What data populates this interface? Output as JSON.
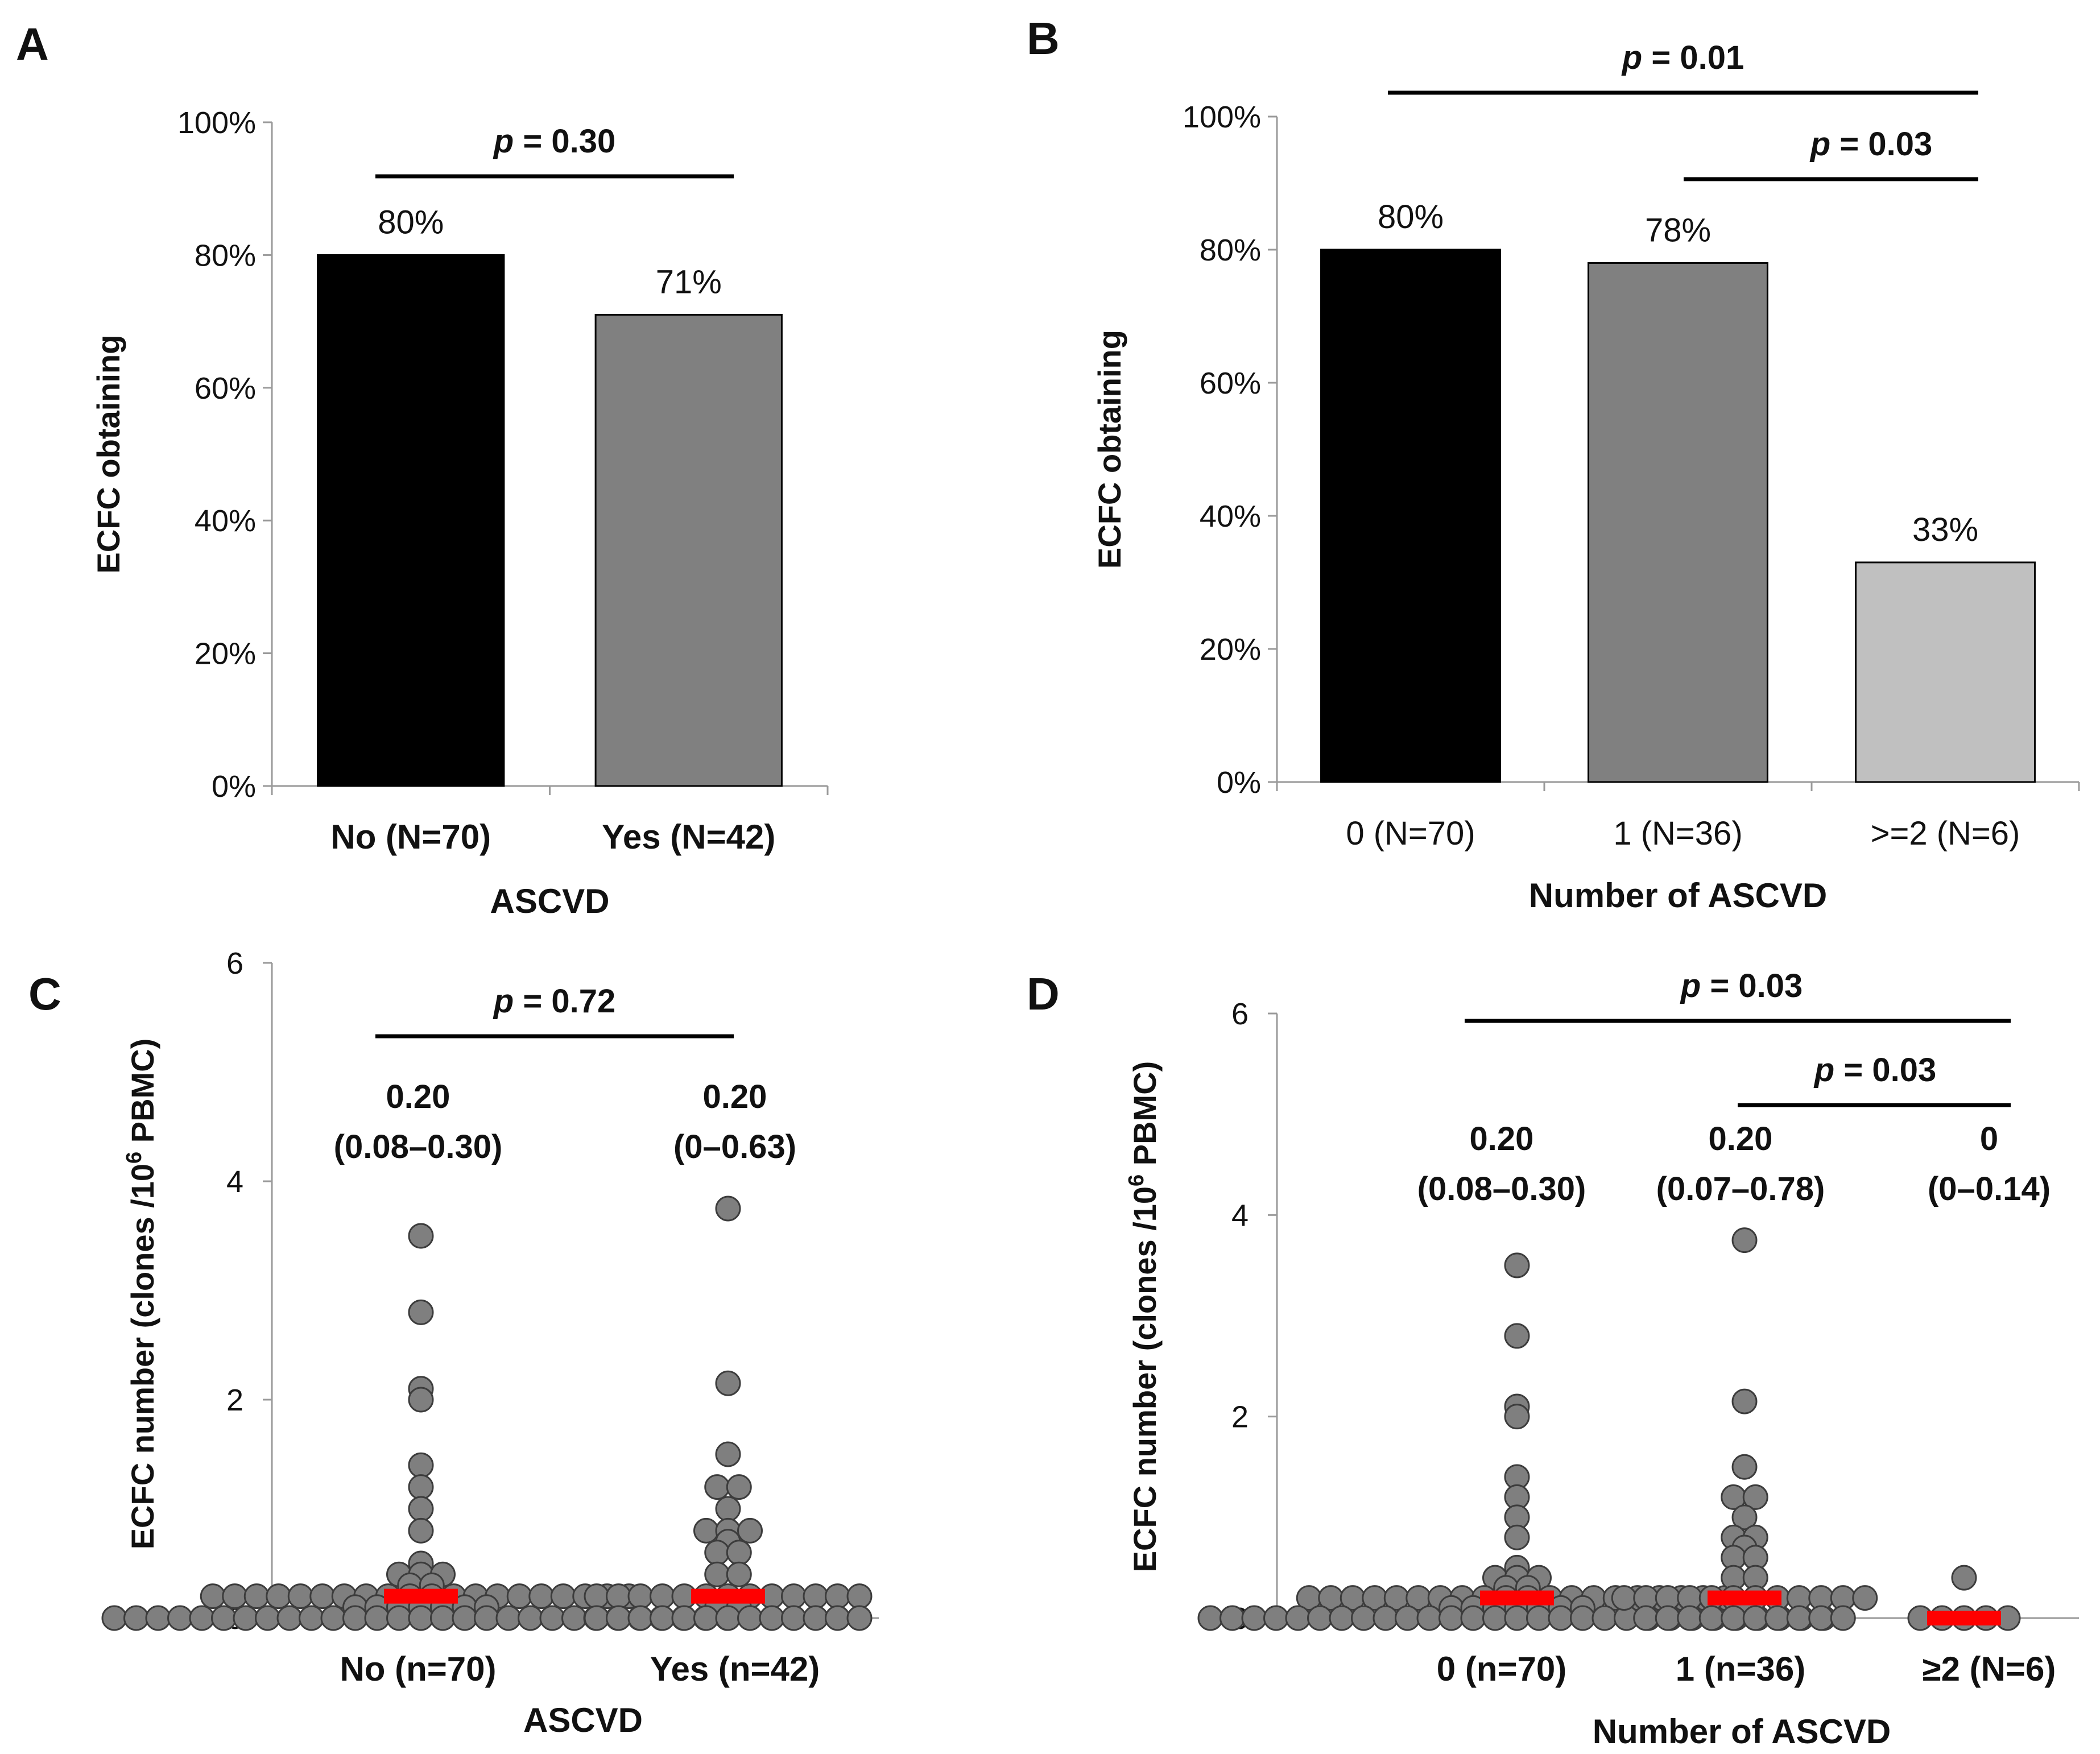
{
  "chart_data": [
    {
      "panel": "A",
      "type": "bar",
      "categories": [
        "No (N=70)",
        "Yes (N=42)"
      ],
      "values": [
        80,
        71
      ],
      "value_labels": [
        "80%",
        "71%"
      ],
      "colors": [
        "#000000",
        "#808080"
      ],
      "xlabel": "ASCVD",
      "ylabel": "ECFC obtaining",
      "ylim": [
        0,
        100
      ],
      "yticks": [
        "0%",
        "20%",
        "40%",
        "60%",
        "80%",
        "100%"
      ],
      "comparisons": [
        {
          "from": 0,
          "to": 1,
          "label_prefix": "p",
          "label_rest": " = 0.30"
        }
      ]
    },
    {
      "panel": "B",
      "type": "bar",
      "categories": [
        "0 (N=70)",
        "1 (N=36)",
        ">=2 (N=6)"
      ],
      "values": [
        80,
        78,
        33
      ],
      "value_labels": [
        "80%",
        "78%",
        "33%"
      ],
      "colors": [
        "#000000",
        "#808080",
        "#c0c0c0"
      ],
      "xlabel": "Number of ASCVD",
      "ylabel": "ECFC obtaining",
      "ylim": [
        0,
        100
      ],
      "yticks": [
        "0%",
        "20%",
        "40%",
        "60%",
        "80%",
        "100%"
      ],
      "comparisons": [
        {
          "from": 0,
          "to": 2,
          "label_prefix": "p",
          "label_rest": " = 0.01"
        },
        {
          "from": 1,
          "to": 2,
          "label_prefix": "p",
          "label_rest": " = 0.03"
        }
      ]
    },
    {
      "panel": "C",
      "type": "scatter",
      "categories": [
        "No (n=70)",
        "Yes  (n=42)"
      ],
      "xlabel": "ASCVD",
      "ylabel_parts": [
        "ECFC number (clones /10",
        "6",
        " PBMC)"
      ],
      "ylim": [
        0,
        6
      ],
      "yticks": [
        "0",
        "2",
        "4",
        "6"
      ],
      "medians": [
        0.2,
        0.2
      ],
      "median_labels": [
        "0.20",
        "0.20"
      ],
      "iqr_labels": [
        "(0.08–0.30)",
        "(0–0.63)"
      ],
      "comparisons": [
        {
          "from": 0,
          "to": 1,
          "label_prefix": "p",
          "label_rest": " = 0.72"
        }
      ],
      "groups": [
        [
          3.5,
          2.8,
          2.1,
          2.0,
          1.4,
          1.2,
          1.0,
          0.8,
          0.5,
          0.4,
          0.4,
          0.4,
          0.3,
          0.3,
          0.2,
          0.2,
          0.2,
          0.2,
          0.2,
          0.2,
          0.2,
          0.2,
          0.2,
          0.2,
          0.2,
          0.2,
          0.2,
          0.2,
          0.2,
          0.2,
          0.2,
          0.2,
          0.2,
          0.2,
          0.1,
          0.1,
          0.1,
          0.1,
          0.1,
          0.1,
          0.1,
          0,
          0,
          0,
          0,
          0,
          0,
          0,
          0,
          0,
          0,
          0,
          0,
          0,
          0,
          0,
          0,
          0,
          0,
          0,
          0,
          0,
          0,
          0,
          0,
          0,
          0,
          0,
          0,
          0
        ],
        [
          3.75,
          2.15,
          1.5,
          1.2,
          1.2,
          1.0,
          0.8,
          0.8,
          0.8,
          0.7,
          0.6,
          0.6,
          0.4,
          0.4,
          0.2,
          0.2,
          0.2,
          0.2,
          0.2,
          0.2,
          0.2,
          0.2,
          0.2,
          0.2,
          0.2,
          0.2,
          0.2,
          0.1,
          0.1,
          0,
          0,
          0,
          0,
          0,
          0,
          0,
          0,
          0,
          0,
          0,
          0,
          0
        ]
      ]
    },
    {
      "panel": "D",
      "type": "scatter",
      "categories": [
        "0 (n=70)",
        "1 (n=36)",
        "≥2 (N=6)"
      ],
      "xlabel": "Number of ASCVD",
      "ylabel_parts": [
        "ECFC number (clones /10",
        "6",
        " PBMC)"
      ],
      "ylim": [
        0,
        6
      ],
      "yticks": [
        "0",
        "2",
        "4",
        "6"
      ],
      "medians": [
        0.2,
        0.2,
        0
      ],
      "median_labels": [
        "0.20",
        "0.20",
        "0"
      ],
      "iqr_labels": [
        "(0.08–0.30)",
        "(0.07–0.78)",
        "(0–0.14)"
      ],
      "comparisons": [
        {
          "from": 0,
          "to": 2,
          "label_prefix": "p",
          "label_rest": " = 0.03"
        },
        {
          "from": 1,
          "to": 2,
          "label_prefix": "p",
          "label_rest": " = 0.03"
        }
      ],
      "groups": [
        [
          3.5,
          2.8,
          2.1,
          2.0,
          1.4,
          1.2,
          1.0,
          0.8,
          0.5,
          0.4,
          0.4,
          0.4,
          0.3,
          0.3,
          0.2,
          0.2,
          0.2,
          0.2,
          0.2,
          0.2,
          0.2,
          0.2,
          0.2,
          0.2,
          0.2,
          0.2,
          0.2,
          0.2,
          0.2,
          0.2,
          0.2,
          0.2,
          0.2,
          0.2,
          0.1,
          0.1,
          0.1,
          0.1,
          0.1,
          0.1,
          0.1,
          0,
          0,
          0,
          0,
          0,
          0,
          0,
          0,
          0,
          0,
          0,
          0,
          0,
          0,
          0,
          0,
          0,
          0,
          0,
          0,
          0,
          0,
          0,
          0,
          0,
          0,
          0,
          0,
          0
        ],
        [
          3.75,
          2.15,
          1.5,
          1.2,
          1.2,
          1.0,
          0.8,
          0.8,
          0.7,
          0.6,
          0.6,
          0.4,
          0.4,
          0.2,
          0.2,
          0.2,
          0.2,
          0.2,
          0.2,
          0.2,
          0.2,
          0.2,
          0.2,
          0.2,
          0.2,
          0.1,
          0,
          0,
          0,
          0,
          0,
          0,
          0,
          0,
          0,
          0
        ],
        [
          0.4,
          0,
          0,
          0,
          0,
          0
        ]
      ]
    }
  ],
  "colors": {
    "median_line": "#ff0000",
    "dot_fill": "#7f7f7f",
    "dot_stroke": "#3c3c3c",
    "axis": "#9a9a9a"
  }
}
